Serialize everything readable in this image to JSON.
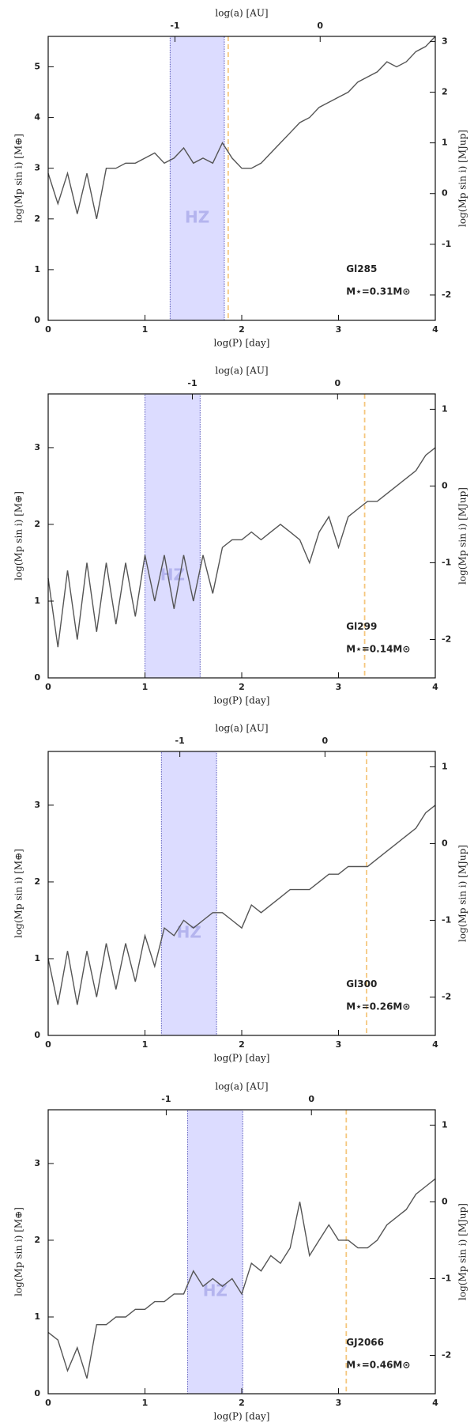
{
  "chart_data": [
    {
      "type": "line",
      "x_label": "log(P) [day]",
      "x2_label": "log(a) [AU]",
      "y_label": "log(Mp sin i) [M⊕]",
      "y2_label": "log(Mp sin i) [MJup]",
      "xlim": [
        0,
        4
      ],
      "xticks": [
        0,
        1,
        2,
        3,
        4
      ],
      "x2lim": [
        -1.873,
        0.793
      ],
      "x2ticks": [
        -1,
        0
      ],
      "ylim": [
        0,
        5.6
      ],
      "yticks": [
        0,
        1,
        2,
        3,
        4,
        5
      ],
      "y2lim": [
        -2.5,
        3.1
      ],
      "y2ticks": [
        -2,
        -1,
        0,
        1,
        2,
        3
      ],
      "hz": [
        1.26,
        1.82
      ],
      "hz_label": "HZ",
      "dashed_x": 1.86,
      "dashed_color": "#f5c77e",
      "hz_color": "#dcdcff",
      "annotations": [
        "Gl285",
        "M⋆=0.31M⊙"
      ],
      "x": [
        0,
        0.1,
        0.2,
        0.3,
        0.4,
        0.5,
        0.6,
        0.7,
        0.8,
        0.9,
        1,
        1.1,
        1.2,
        1.3,
        1.4,
        1.5,
        1.6,
        1.7,
        1.8,
        1.9,
        2,
        2.1,
        2.2,
        2.3,
        2.4,
        2.5,
        2.6,
        2.7,
        2.8,
        2.9,
        3,
        3.1,
        3.2,
        3.3,
        3.4,
        3.5,
        3.6,
        3.7,
        3.8,
        3.9,
        4
      ],
      "color": "#555555",
      "values": [
        2.9,
        2.3,
        2.9,
        2.1,
        2.9,
        2.0,
        3.0,
        3.0,
        3.1,
        3.1,
        3.2,
        3.3,
        3.1,
        3.2,
        3.4,
        3.1,
        3.2,
        3.1,
        3.5,
        3.2,
        3.0,
        3.0,
        3.1,
        3.3,
        3.5,
        3.7,
        3.9,
        4.0,
        4.2,
        4.3,
        4.4,
        4.5,
        4.7,
        4.8,
        4.9,
        5.1,
        5.0,
        5.1,
        5.3,
        5.4,
        5.6
      ]
    },
    {
      "type": "line",
      "x_label": "log(P) [day]",
      "x2_label": "log(a) [AU]",
      "y_label": "log(Mp sin i) [M⊕]",
      "y2_label": "log(Mp sin i) [MJup]",
      "xlim": [
        0,
        4
      ],
      "xticks": [
        0,
        1,
        2,
        3,
        4
      ],
      "x2lim": [
        -1.993,
        0.673
      ],
      "x2ticks": [
        -1,
        0
      ],
      "ylim": [
        0,
        3.7
      ],
      "yticks": [
        0,
        1,
        2,
        3
      ],
      "y2lim": [
        -2.5,
        1.2
      ],
      "y2ticks": [
        -2,
        -1,
        0,
        1
      ],
      "hz": [
        1.0,
        1.57
      ],
      "hz_label": "HZ",
      "dashed_x": 3.27,
      "dashed_color": "#f5c77e",
      "hz_color": "#dcdcff",
      "annotations": [
        "Gl299",
        "M⋆=0.14M⊙"
      ],
      "x": [
        0,
        0.1,
        0.2,
        0.3,
        0.4,
        0.5,
        0.6,
        0.7,
        0.8,
        0.9,
        1,
        1.1,
        1.2,
        1.3,
        1.4,
        1.5,
        1.6,
        1.7,
        1.8,
        1.9,
        2,
        2.1,
        2.2,
        2.3,
        2.4,
        2.5,
        2.6,
        2.7,
        2.8,
        2.9,
        3,
        3.1,
        3.2,
        3.3,
        3.4,
        3.5,
        3.6,
        3.7,
        3.8,
        3.9,
        4
      ],
      "color": "#555555",
      "values": [
        1.3,
        0.4,
        1.4,
        0.5,
        1.5,
        0.6,
        1.5,
        0.7,
        1.5,
        0.8,
        1.6,
        1.0,
        1.6,
        0.9,
        1.6,
        1.0,
        1.6,
        1.1,
        1.7,
        1.8,
        1.8,
        1.9,
        1.8,
        1.9,
        2.0,
        1.9,
        1.8,
        1.5,
        1.9,
        2.1,
        1.7,
        2.1,
        2.2,
        2.3,
        2.3,
        2.4,
        2.5,
        2.6,
        2.7,
        2.9,
        3.0
      ]
    },
    {
      "type": "line",
      "x_label": "log(P) [day]",
      "x2_label": "log(a) [AU]",
      "y_label": "log(Mp sin i) [M⊕]",
      "y2_label": "log(Mp sin i) [MJup]",
      "xlim": [
        0,
        4
      ],
      "xticks": [
        0,
        1,
        2,
        3,
        4
      ],
      "x2lim": [
        -1.907,
        0.76
      ],
      "x2ticks": [
        -1,
        0
      ],
      "ylim": [
        0,
        3.7
      ],
      "yticks": [
        0,
        1,
        2,
        3
      ],
      "y2lim": [
        -2.5,
        1.2
      ],
      "y2ticks": [
        -2,
        -1,
        0,
        1
      ],
      "hz": [
        1.17,
        1.74
      ],
      "hz_label": "HZ",
      "dashed_x": 3.29,
      "dashed_color": "#f5c77e",
      "hz_color": "#dcdcff",
      "annotations": [
        "Gl300",
        "M⋆=0.26M⊙"
      ],
      "x": [
        0,
        0.1,
        0.2,
        0.3,
        0.4,
        0.5,
        0.6,
        0.7,
        0.8,
        0.9,
        1,
        1.1,
        1.2,
        1.3,
        1.4,
        1.5,
        1.6,
        1.7,
        1.8,
        1.9,
        2,
        2.1,
        2.2,
        2.3,
        2.4,
        2.5,
        2.6,
        2.7,
        2.8,
        2.9,
        3,
        3.1,
        3.2,
        3.3,
        3.4,
        3.5,
        3.6,
        3.7,
        3.8,
        3.9,
        4
      ],
      "color": "#555555",
      "values": [
        1.0,
        0.4,
        1.1,
        0.4,
        1.1,
        0.5,
        1.2,
        0.6,
        1.2,
        0.7,
        1.3,
        0.9,
        1.4,
        1.3,
        1.5,
        1.4,
        1.5,
        1.6,
        1.6,
        1.5,
        1.4,
        1.7,
        1.6,
        1.7,
        1.8,
        1.9,
        1.9,
        1.9,
        2.0,
        2.1,
        2.1,
        2.2,
        2.2,
        2.2,
        2.3,
        2.4,
        2.5,
        2.6,
        2.7,
        2.9,
        3.0
      ]
    },
    {
      "type": "line",
      "x_label": "log(P) [day]",
      "x2_label": "log(a) [AU]",
      "y_label": "log(Mp sin i) [M⊕]",
      "y2_label": "log(Mp sin i) [MJup]",
      "xlim": [
        0,
        4
      ],
      "xticks": [
        0,
        1,
        2,
        3,
        4
      ],
      "x2lim": [
        -1.813,
        0.853
      ],
      "x2ticks": [
        -1,
        0
      ],
      "ylim": [
        0,
        3.7
      ],
      "yticks": [
        0,
        1,
        2,
        3
      ],
      "y2lim": [
        -2.5,
        1.2
      ],
      "y2ticks": [
        -2,
        -1,
        0,
        1
      ],
      "hz": [
        1.44,
        2.01
      ],
      "hz_label": "HZ",
      "dashed_x": 3.08,
      "dashed_color": "#f5c77e",
      "hz_color": "#dcdcff",
      "annotations": [
        "GJ2066",
        "M⋆=0.46M⊙"
      ],
      "x": [
        0,
        0.1,
        0.2,
        0.3,
        0.4,
        0.5,
        0.6,
        0.7,
        0.8,
        0.9,
        1,
        1.1,
        1.2,
        1.3,
        1.4,
        1.5,
        1.6,
        1.7,
        1.8,
        1.9,
        2,
        2.1,
        2.2,
        2.3,
        2.4,
        2.5,
        2.6,
        2.7,
        2.8,
        2.9,
        3,
        3.1,
        3.2,
        3.3,
        3.4,
        3.5,
        3.6,
        3.7,
        3.8,
        3.9,
        4
      ],
      "color": "#555555",
      "values": [
        0.8,
        0.7,
        0.3,
        0.6,
        0.2,
        0.9,
        0.9,
        1.0,
        1.0,
        1.1,
        1.1,
        1.2,
        1.2,
        1.3,
        1.3,
        1.6,
        1.4,
        1.5,
        1.4,
        1.5,
        1.3,
        1.7,
        1.6,
        1.8,
        1.7,
        1.9,
        2.5,
        1.8,
        2.0,
        2.2,
        2.0,
        2.0,
        1.9,
        1.9,
        2.0,
        2.2,
        2.3,
        2.4,
        2.6,
        2.7,
        2.8
      ]
    }
  ]
}
